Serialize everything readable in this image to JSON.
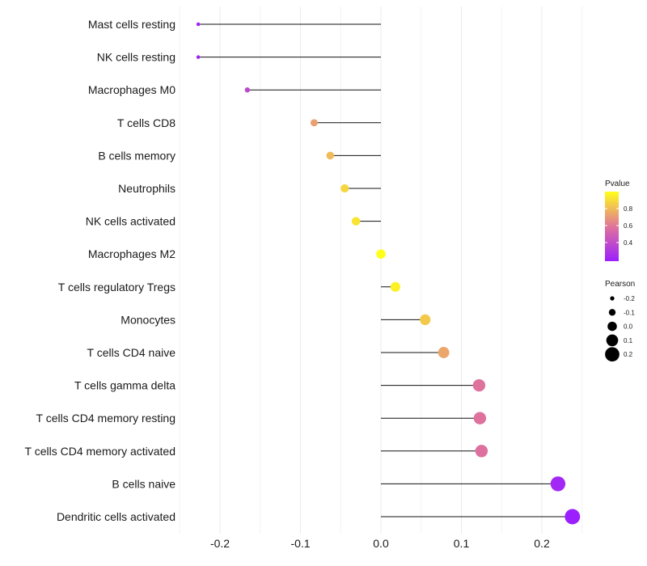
{
  "chart_data": {
    "type": "lollipop",
    "categories": [
      "Mast cells resting",
      "NK cells resting",
      "Macrophages M0",
      "T cells CD8",
      "B cells memory",
      "Neutrophils",
      "NK cells activated",
      "Macrophages M2",
      "T cells regulatory  Tregs ",
      "Monocytes",
      "T cells CD4 naive",
      "T cells gamma delta",
      "T cells CD4 memory resting",
      "T cells CD4 memory activated",
      "B cells naive",
      "Dendritic cells activated"
    ],
    "pearson": [
      -0.227,
      -0.227,
      -0.166,
      -0.083,
      -0.063,
      -0.045,
      -0.031,
      0.0,
      0.018,
      0.055,
      0.078,
      0.122,
      0.123,
      0.125,
      0.22,
      0.238
    ],
    "pvalue": [
      0.2,
      0.2,
      0.38,
      0.72,
      0.8,
      0.88,
      0.92,
      1.0,
      0.96,
      0.84,
      0.74,
      0.58,
      0.58,
      0.57,
      0.22,
      0.18
    ],
    "xlim": [
      -0.25,
      0.26
    ],
    "x_ticks": [
      -0.2,
      -0.1,
      0.0,
      0.1,
      0.2
    ],
    "x_tick_labels": [
      "-0.2",
      "-0.1",
      "0.0",
      "0.1",
      "0.2"
    ],
    "xlabel": "",
    "ylabel": "",
    "grid": true,
    "legend_color": {
      "title": "Pvalue",
      "range": [
        0.18,
        1.0
      ],
      "ticks": [
        0.4,
        0.6,
        0.8
      ],
      "tick_labels": [
        "0.4",
        "0.6",
        "0.8"
      ],
      "low_color": "#9c1fff",
      "mid_color": "#e0749a",
      "high_color": "#ffff1a"
    },
    "legend_size": {
      "title": "Pearson",
      "values": [
        -0.2,
        -0.1,
        0.0,
        0.1,
        0.2
      ],
      "labels": [
        "-0.2",
        "-0.1",
        "0.0",
        "0.1",
        "0.2"
      ]
    },
    "legend_position": "right"
  }
}
